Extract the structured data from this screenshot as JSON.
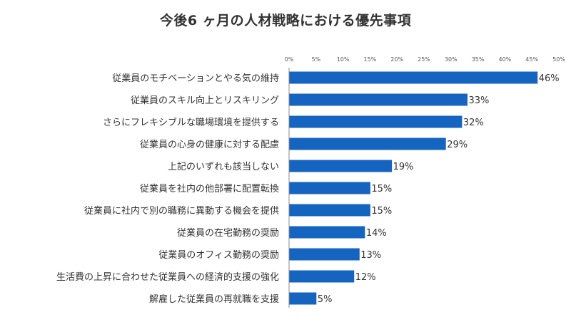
{
  "title": "今後6 ヶ月の人材戦略における優先事項",
  "chart_data": {
    "type": "bar",
    "orientation": "horizontal",
    "title": "今後6 ヶ月の人材戦略における優先事項",
    "categories": [
      "従業員のモチベーションとやる気の維持",
      "従業員のスキル向上とリスキリング",
      "さらにフレキシブルな職場環境を提供する",
      "従業員の心身の健康に対する配慮",
      "上記のいずれも該当しない",
      "従業員を社内の他部署に配置転換",
      "従業員に社内で別の職務に異動する機会を提供",
      "従業員の在宅勤務の奨励",
      "従業員のオフィス勤務の奨励",
      "生活費の上昇に合わせた従業員への経済的支援の強化",
      "解雇した従業員の再就職を支援"
    ],
    "values": [
      46,
      33,
      32,
      29,
      19,
      15,
      15,
      14,
      13,
      12,
      5
    ],
    "value_labels": [
      "46%",
      "33%",
      "32%",
      "29%",
      "19%",
      "15%",
      "15%",
      "14%",
      "13%",
      "12%",
      "5%"
    ],
    "xlim": [
      0,
      50
    ],
    "xticks": [
      0,
      5,
      10,
      15,
      20,
      25,
      30,
      35,
      40,
      45,
      50
    ],
    "xtick_labels": [
      "0%",
      "5%",
      "10%",
      "15%",
      "20%",
      "25%",
      "30%",
      "35%",
      "40%",
      "45%",
      "50%"
    ],
    "x_axis_position": "top",
    "grid": false,
    "legend": "none",
    "bar_color": "#1565C0"
  }
}
